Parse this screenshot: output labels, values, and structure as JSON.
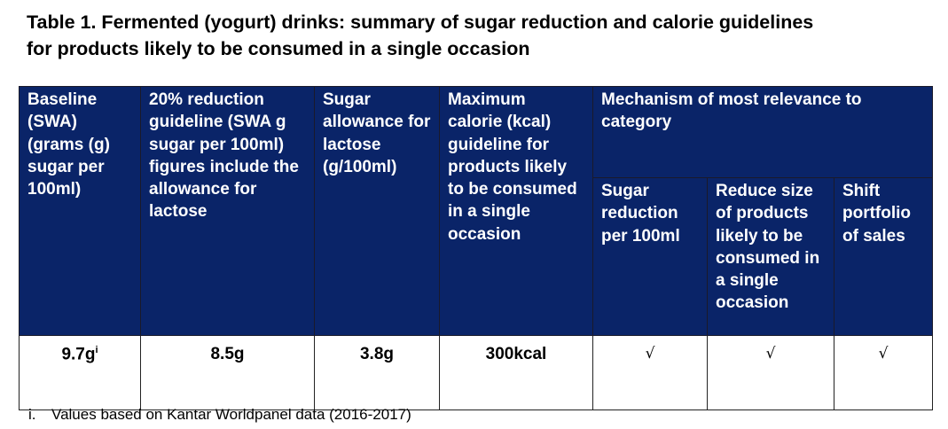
{
  "title": "Table 1. Fermented (yogurt) drinks: summary of sugar reduction and calorie guidelines for products likely to be consumed in a single occasion",
  "headers": {
    "baseline": "Baseline (SWA) (grams (g) sugar per 100ml)",
    "reduction": "20% reduction guideline (SWA g sugar per 100ml) figures include the allowance for lactose",
    "lactose": "Sugar allowance for lactose (g/100ml)",
    "calorie": "Maximum calorie (kcal) guideline for products likely to be consumed in a single occasion",
    "mechanism": "Mechanism of most relevance to category",
    "sub": [
      "Sugar reduction per 100ml",
      "Reduce size of products likely to be consumed in a single occasion",
      "Shift portfolio of sales"
    ]
  },
  "row": {
    "baseline": "9.7g",
    "baseline_note": "i",
    "reduction": "8.5g",
    "lactose": "3.8g",
    "calorie": "300kcal",
    "checks": [
      "√",
      "√",
      "√"
    ]
  },
  "footnote": {
    "marker": "i.",
    "text": "Values based on Kantar Worldpanel data (2016-2017)"
  }
}
